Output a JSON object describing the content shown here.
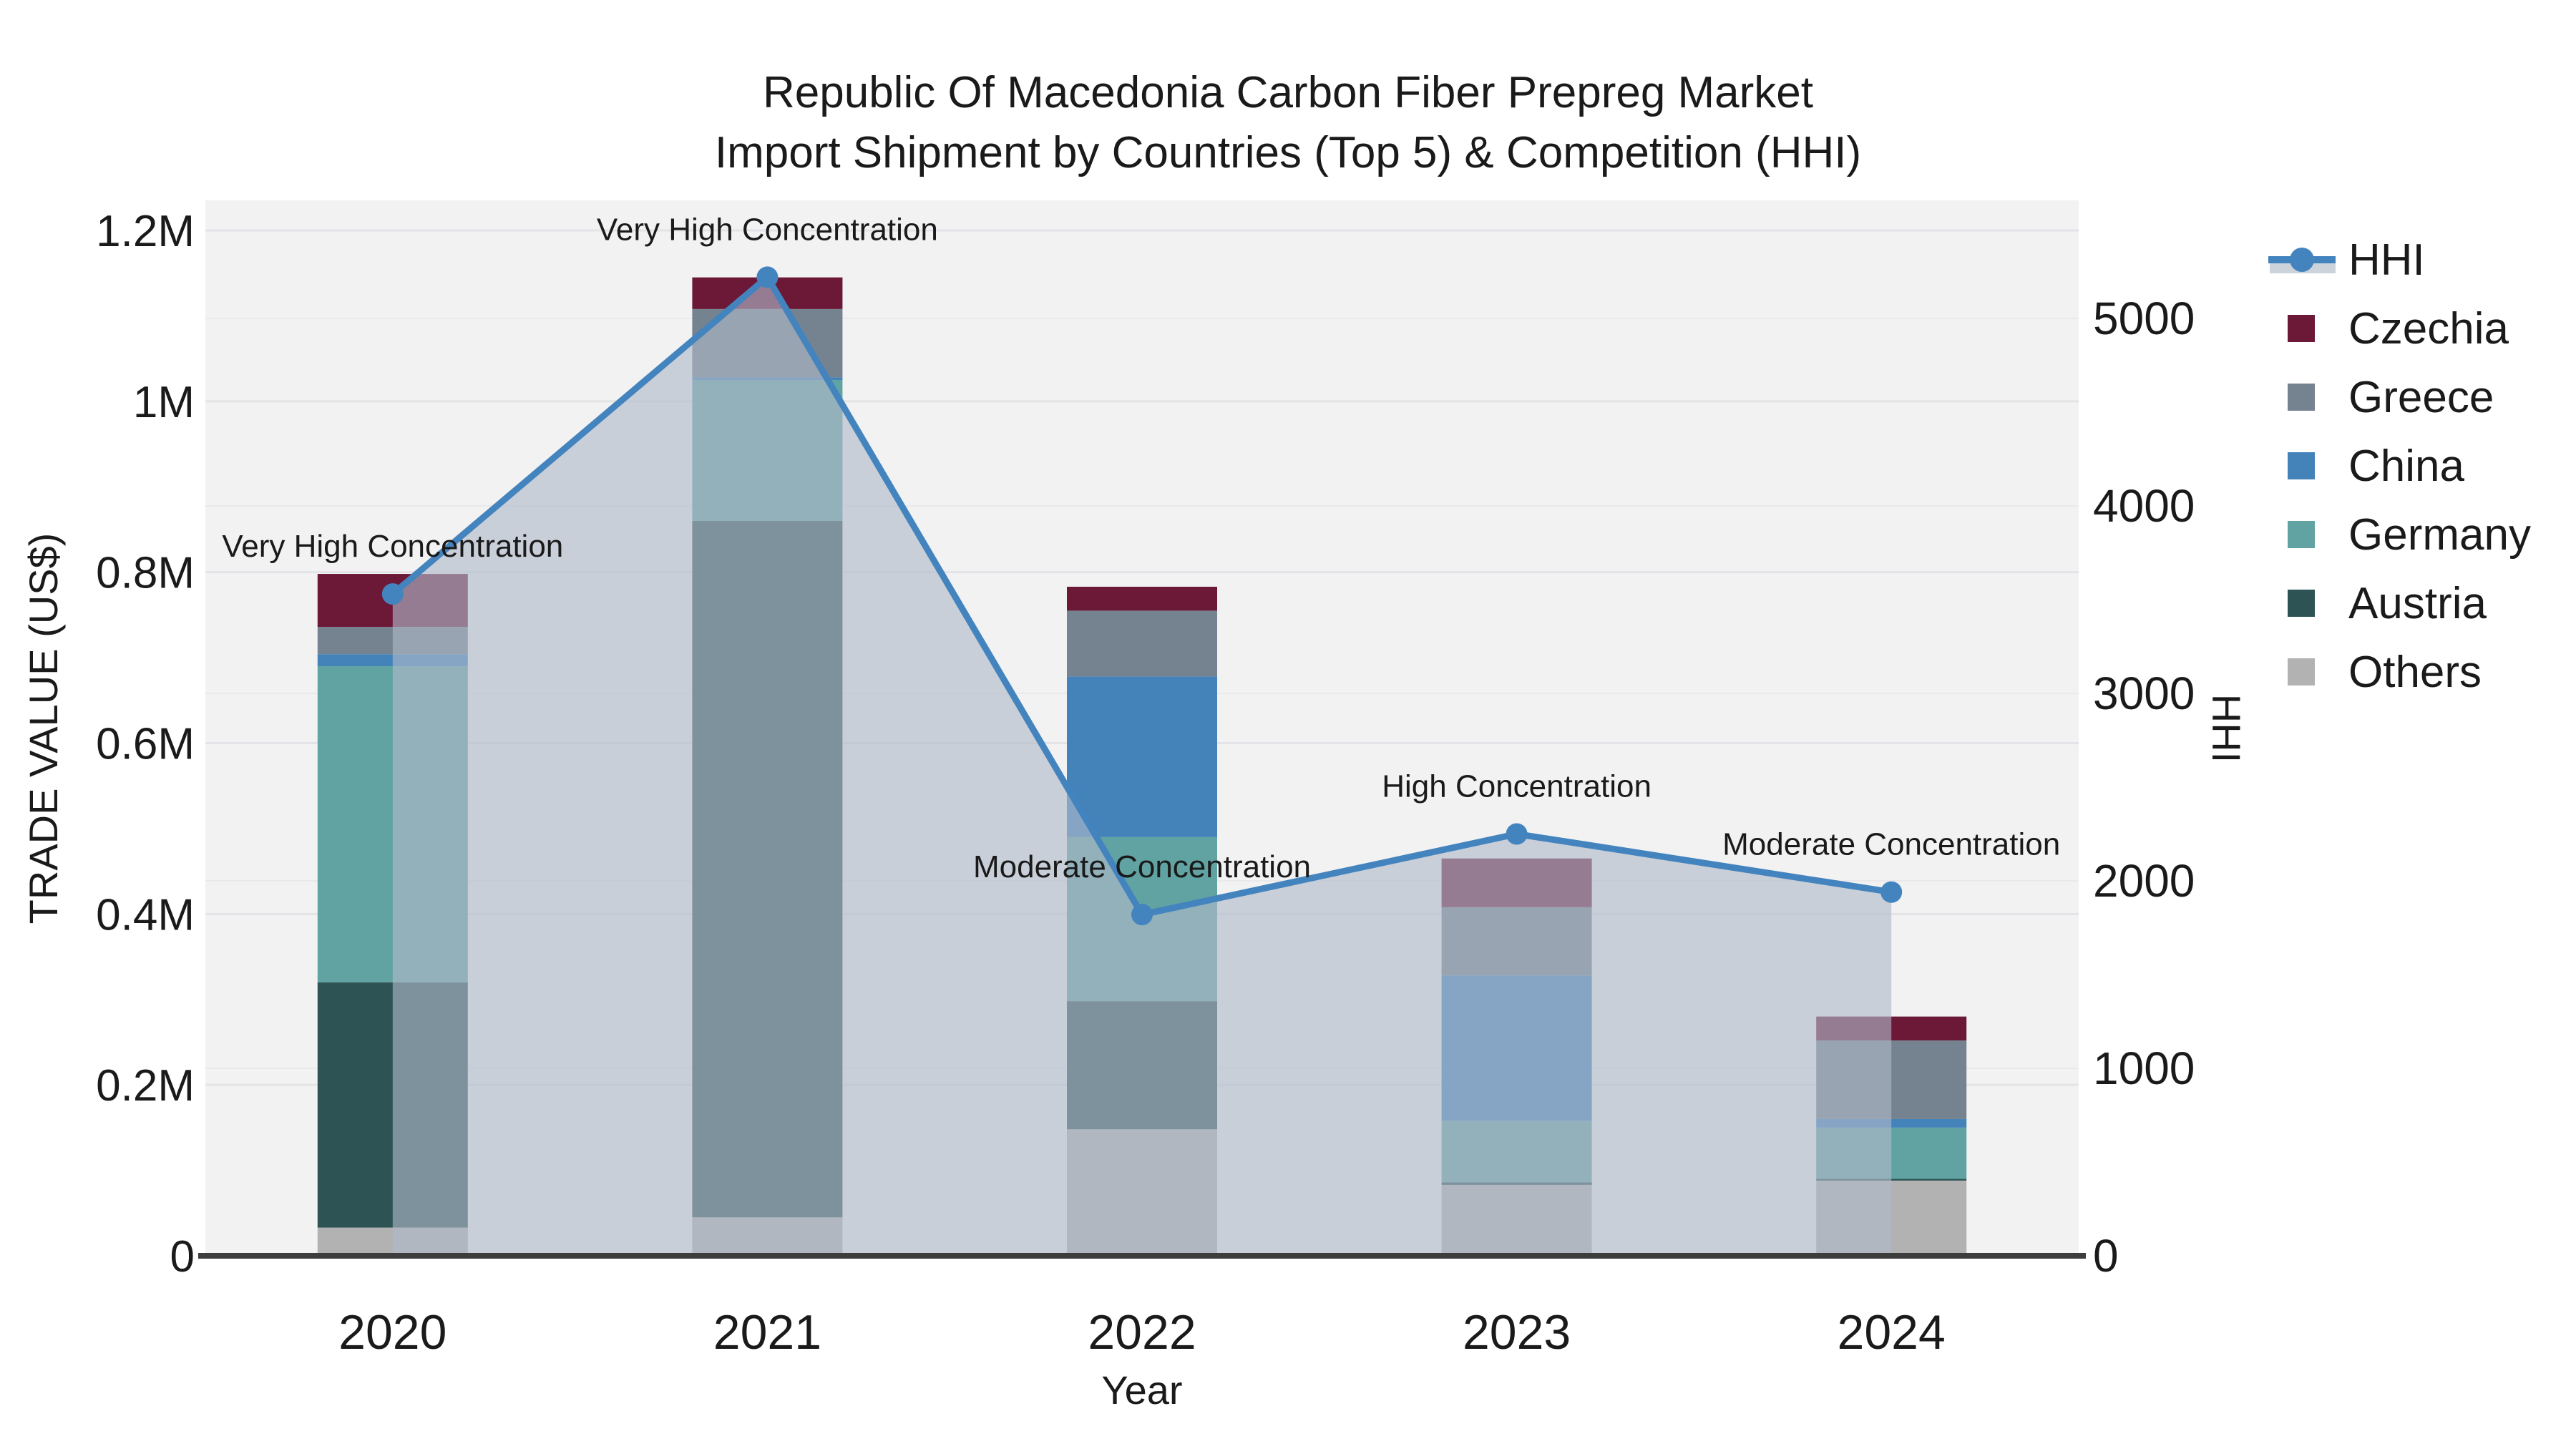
{
  "title": {
    "line1": "Republic Of Macedonia Carbon Fiber Prepreg Market",
    "line2": "Import Shipment by Countries (Top 5) & Competition (HHI)"
  },
  "axes": {
    "x": {
      "title": "Year",
      "ticks": [
        "2020",
        "2021",
        "2022",
        "2023",
        "2024"
      ]
    },
    "y_left": {
      "title": "TRADE VALUE (US$)",
      "tick_labels": [
        "0",
        "0.2M",
        "0.4M",
        "0.6M",
        "0.8M",
        "1M",
        "1.2M"
      ],
      "tick_values": [
        0,
        200000,
        400000,
        600000,
        800000,
        1000000,
        1200000
      ],
      "range": [
        0,
        1200000
      ]
    },
    "y_right": {
      "title": "HHI",
      "tick_labels": [
        "0",
        "1000",
        "2000",
        "3000",
        "4000",
        "5000"
      ],
      "tick_values": [
        0,
        1000,
        2000,
        3000,
        4000,
        5000
      ],
      "range": [
        0,
        5500
      ]
    }
  },
  "legend": {
    "items": [
      {
        "label": "HHI",
        "type": "line",
        "color": "#4484BE"
      },
      {
        "label": "Czechia",
        "type": "swatch",
        "color": "#6C1837"
      },
      {
        "label": "Greece",
        "type": "swatch",
        "color": "#75828F"
      },
      {
        "label": "China",
        "type": "swatch",
        "color": "#4383BA"
      },
      {
        "label": "Germany",
        "type": "swatch",
        "color": "#61A3A2"
      },
      {
        "label": "Austria",
        "type": "swatch",
        "color": "#2E5354"
      },
      {
        "label": "Others",
        "type": "swatch",
        "color": "#B2B2B2"
      }
    ]
  },
  "chart_data": {
    "type": "bar",
    "subtype": "stacked-bars-with-hhi-line",
    "categories": [
      "2020",
      "2021",
      "2022",
      "2023",
      "2024"
    ],
    "stack_order_bottom_to_top": [
      "Others",
      "Austria",
      "Germany",
      "China",
      "Greece",
      "Czechia"
    ],
    "series": [
      {
        "name": "Others",
        "color": "#B2B2B2",
        "values": [
          33000,
          45000,
          148000,
          83000,
          88000
        ]
      },
      {
        "name": "Austria",
        "color": "#2E5354",
        "values": [
          287000,
          815000,
          150000,
          3000,
          2000
        ]
      },
      {
        "name": "Germany",
        "color": "#61A3A2",
        "values": [
          370000,
          165000,
          192000,
          72000,
          60000
        ]
      },
      {
        "name": "China",
        "color": "#4383BA",
        "values": [
          14000,
          3000,
          188000,
          170000,
          10000
        ]
      },
      {
        "name": "Greece",
        "color": "#75828F",
        "values": [
          32000,
          80000,
          77000,
          80000,
          92000
        ]
      },
      {
        "name": "Czechia",
        "color": "#6C1837",
        "values": [
          62000,
          37000,
          28000,
          57000,
          28000
        ]
      }
    ],
    "bar_totals": [
      798000,
      1145000,
      783000,
      465000,
      280000
    ],
    "line_series": {
      "name": "HHI",
      "axis": "y_right",
      "color": "#4484BE",
      "area_color": "rgba(176,186,202,0.62)",
      "values": [
        3530,
        5220,
        1820,
        2250,
        1940
      ]
    },
    "annotations": [
      {
        "x": "2020",
        "text": "Very High Concentration"
      },
      {
        "x": "2021",
        "text": "Very High Concentration"
      },
      {
        "x": "2022",
        "text": "Moderate Concentration"
      },
      {
        "x": "2023",
        "text": "High Concentration"
      },
      {
        "x": "2024",
        "text": "Moderate Concentration"
      }
    ],
    "xlabel": "Year",
    "ylabel": "TRADE VALUE (US$)",
    "y2label": "HHI",
    "grid": true,
    "legend_position": "right",
    "plot_background": "#F2F2F2"
  }
}
